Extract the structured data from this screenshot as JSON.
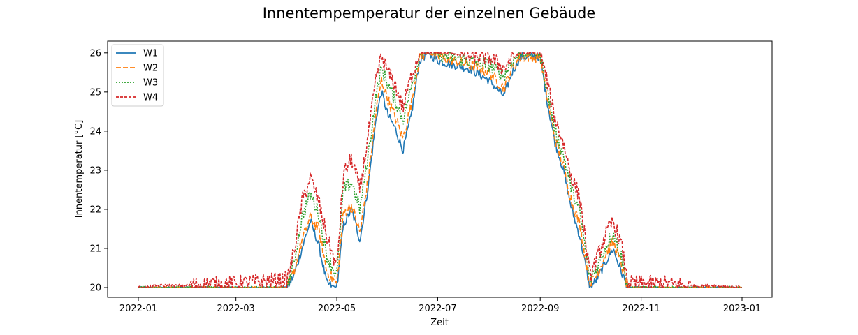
{
  "chart_data": {
    "type": "line",
    "title": "Innentempemperatur der einzelnen Gebäude",
    "xlabel": "Zeit",
    "ylabel": "Innentemperatur [°C]",
    "xlim": [
      "2022-01-01",
      "2023-01-01"
    ],
    "ylim": [
      19.75,
      26.3
    ],
    "x_ticks": [
      "2022-01",
      "2022-03",
      "2022-05",
      "2022-07",
      "2022-09",
      "2022-11",
      "2023-01"
    ],
    "y_ticks": [
      20,
      21,
      22,
      23,
      24,
      25,
      26
    ],
    "grid": false,
    "legend_position": "upper-left",
    "x": [
      "2022-01-01",
      "2022-01-15",
      "2022-02-01",
      "2022-02-15",
      "2022-03-01",
      "2022-03-15",
      "2022-04-01",
      "2022-04-05",
      "2022-04-10",
      "2022-04-15",
      "2022-04-20",
      "2022-04-25",
      "2022-05-01",
      "2022-05-05",
      "2022-05-10",
      "2022-05-15",
      "2022-05-20",
      "2022-05-25",
      "2022-05-28",
      "2022-06-01",
      "2022-06-05",
      "2022-06-10",
      "2022-06-15",
      "2022-06-20",
      "2022-06-25",
      "2022-07-01",
      "2022-07-10",
      "2022-07-20",
      "2022-08-01",
      "2022-08-10",
      "2022-08-15",
      "2022-08-20",
      "2022-08-25",
      "2022-09-01",
      "2022-09-05",
      "2022-09-10",
      "2022-09-15",
      "2022-09-20",
      "2022-09-25",
      "2022-10-01",
      "2022-10-05",
      "2022-10-10",
      "2022-10-15",
      "2022-10-20",
      "2022-10-24",
      "2022-11-01",
      "2022-11-15",
      "2022-12-01",
      "2022-12-15",
      "2023-01-01"
    ],
    "series": [
      {
        "name": "W1",
        "color": "#1f77b4",
        "dash": "",
        "values": [
          20.0,
          20.0,
          20.0,
          20.0,
          20.0,
          20.0,
          20.0,
          20.3,
          21.0,
          21.7,
          21.1,
          20.1,
          20.0,
          21.6,
          22.0,
          21.2,
          22.6,
          24.4,
          25.0,
          24.4,
          24.1,
          23.5,
          24.4,
          25.8,
          26.0,
          25.8,
          25.7,
          25.6,
          25.3,
          24.9,
          25.5,
          25.9,
          25.9,
          25.9,
          24.8,
          23.7,
          23.0,
          22.0,
          21.3,
          20.0,
          20.2,
          20.6,
          21.0,
          20.4,
          20.0,
          20.0,
          20.0,
          20.0,
          20.0,
          20.0
        ]
      },
      {
        "name": "W2",
        "color": "#ff7f0e",
        "dash": "7,3",
        "values": [
          20.0,
          20.0,
          20.0,
          20.0,
          20.0,
          20.0,
          20.0,
          20.4,
          21.2,
          21.8,
          21.5,
          20.4,
          20.1,
          21.9,
          22.1,
          21.4,
          22.8,
          24.6,
          25.3,
          24.8,
          24.4,
          23.8,
          24.7,
          25.9,
          26.0,
          25.9,
          25.8,
          25.7,
          25.5,
          25.1,
          25.6,
          25.9,
          25.9,
          25.9,
          24.9,
          23.8,
          23.1,
          22.2,
          21.6,
          20.1,
          20.3,
          20.8,
          21.2,
          20.6,
          20.0,
          20.0,
          20.0,
          20.0,
          20.0,
          20.0
        ]
      },
      {
        "name": "W3",
        "color": "#2ca02c",
        "dash": "2,2",
        "values": [
          20.0,
          20.0,
          20.0,
          20.0,
          20.0,
          20.0,
          20.0,
          20.6,
          21.8,
          22.4,
          21.9,
          20.8,
          20.3,
          22.5,
          22.7,
          22.0,
          23.4,
          25.0,
          25.6,
          25.2,
          24.8,
          24.3,
          25.1,
          25.95,
          26.0,
          25.95,
          25.9,
          25.8,
          25.7,
          25.4,
          25.8,
          25.95,
          25.95,
          25.95,
          25.1,
          24.0,
          23.4,
          22.5,
          21.9,
          20.2,
          20.5,
          21.0,
          21.4,
          20.8,
          20.0,
          20.0,
          20.0,
          20.0,
          20.0,
          20.0
        ]
      },
      {
        "name": "W4",
        "color": "#d62728",
        "dash": "4,2",
        "values": [
          20.0,
          20.05,
          20.05,
          20.1,
          20.1,
          20.15,
          20.2,
          20.9,
          22.2,
          22.8,
          22.2,
          21.3,
          20.5,
          22.9,
          23.3,
          22.5,
          23.9,
          25.4,
          25.9,
          25.5,
          25.2,
          24.6,
          25.4,
          26.0,
          26.0,
          26.0,
          26.0,
          25.9,
          25.9,
          25.6,
          25.9,
          26.0,
          26.0,
          26.0,
          25.3,
          24.3,
          23.7,
          22.8,
          22.3,
          20.3,
          20.7,
          21.3,
          21.7,
          21.1,
          20.1,
          20.1,
          20.1,
          20.05,
          20.05,
          20.0
        ]
      }
    ]
  }
}
